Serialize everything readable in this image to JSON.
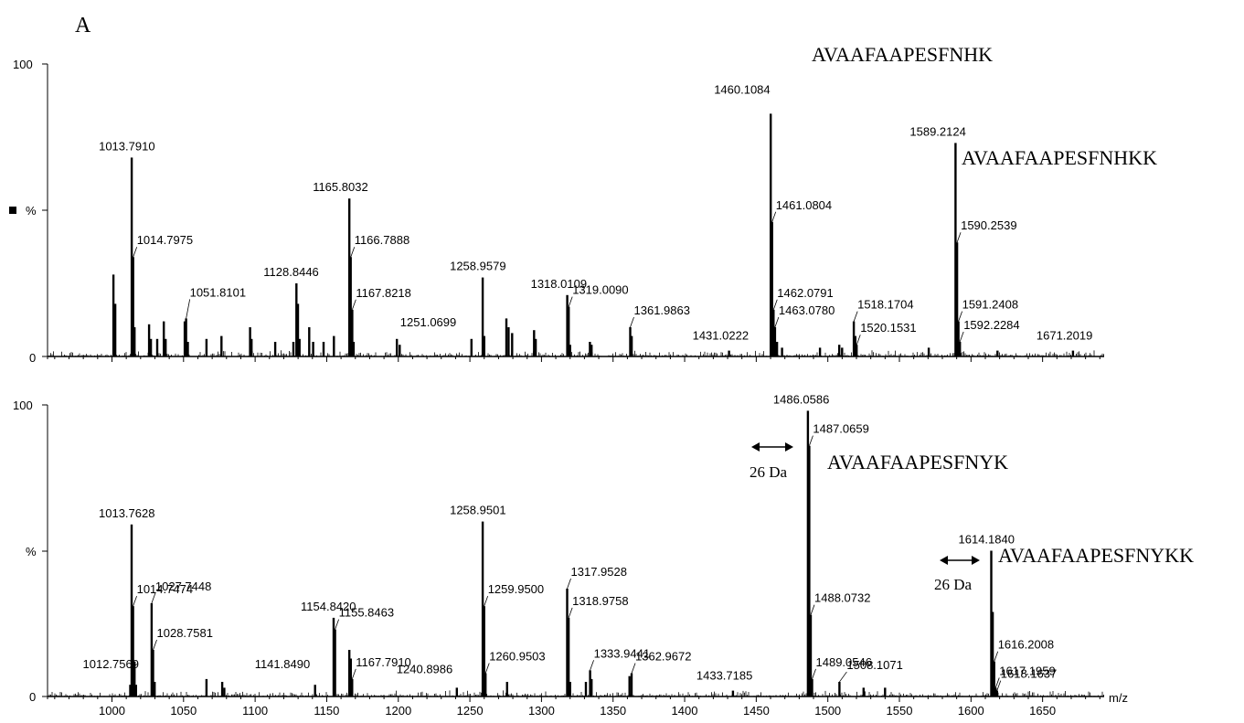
{
  "panel_label": "A",
  "x_unit": "m/z",
  "x_ticks": [
    1000,
    1050,
    1100,
    1150,
    1200,
    1250,
    1300,
    1350,
    1400,
    1450,
    1500,
    1550,
    1600,
    1650
  ],
  "chart_data": [
    {
      "type": "bar",
      "xlim": [
        955,
        1693
      ],
      "ylim": [
        0,
        100
      ],
      "y_tick_labels": [
        "100",
        "%",
        "0"
      ],
      "marker": "■",
      "peaks": [
        {
          "x": 1001.0,
          "y": 28
        },
        {
          "x": 1002.3,
          "y": 18
        },
        {
          "x": 1013.79,
          "y": 68,
          "label": "1013.7910"
        },
        {
          "x": 1014.8,
          "y": 34,
          "label": "1014.7975"
        },
        {
          "x": 1015.8,
          "y": 10
        },
        {
          "x": 1025.9,
          "y": 11
        },
        {
          "x": 1027.2,
          "y": 6
        },
        {
          "x": 1031.6,
          "y": 6
        },
        {
          "x": 1036.2,
          "y": 12
        },
        {
          "x": 1037.5,
          "y": 6
        },
        {
          "x": 1050.8,
          "y": 12
        },
        {
          "x": 1051.81,
          "y": 13,
          "label": "1051.8101"
        },
        {
          "x": 1053.0,
          "y": 5
        },
        {
          "x": 1066.0,
          "y": 6
        },
        {
          "x": 1076.5,
          "y": 7
        },
        {
          "x": 1096.5,
          "y": 10
        },
        {
          "x": 1097.5,
          "y": 6
        },
        {
          "x": 1114.0,
          "y": 5
        },
        {
          "x": 1126.7,
          "y": 5
        },
        {
          "x": 1128.84,
          "y": 25,
          "label": "1128.8446"
        },
        {
          "x": 1129.9,
          "y": 18
        },
        {
          "x": 1131.0,
          "y": 6
        },
        {
          "x": 1137.8,
          "y": 10
        },
        {
          "x": 1140.5,
          "y": 5
        },
        {
          "x": 1147.8,
          "y": 5
        },
        {
          "x": 1155.0,
          "y": 7
        },
        {
          "x": 1165.8,
          "y": 54,
          "label": "1165.8032"
        },
        {
          "x": 1166.79,
          "y": 34,
          "label": "1166.7888"
        },
        {
          "x": 1167.82,
          "y": 16,
          "label": "1167.8218"
        },
        {
          "x": 1168.8,
          "y": 5
        },
        {
          "x": 1199.0,
          "y": 6
        },
        {
          "x": 1201.0,
          "y": 4
        },
        {
          "x": 1251.07,
          "y": 6,
          "label": "1251.0699"
        },
        {
          "x": 1258.96,
          "y": 27,
          "label": "1258.9579"
        },
        {
          "x": 1260.0,
          "y": 7
        },
        {
          "x": 1275.5,
          "y": 13
        },
        {
          "x": 1277.0,
          "y": 10
        },
        {
          "x": 1279.5,
          "y": 8
        },
        {
          "x": 1294.8,
          "y": 9
        },
        {
          "x": 1296.0,
          "y": 6
        },
        {
          "x": 1318.01,
          "y": 21,
          "label": "1318.0109"
        },
        {
          "x": 1319.01,
          "y": 17,
          "label": "1319.0090"
        },
        {
          "x": 1320.0,
          "y": 4
        },
        {
          "x": 1333.8,
          "y": 5
        },
        {
          "x": 1335.0,
          "y": 4
        },
        {
          "x": 1361.99,
          "y": 10,
          "label": "1361.9863"
        },
        {
          "x": 1363.0,
          "y": 7
        },
        {
          "x": 1431.02,
          "y": 2,
          "label": "1431.0222"
        },
        {
          "x": 1460.11,
          "y": 83,
          "label": "1460.1084"
        },
        {
          "x": 1461.08,
          "y": 46,
          "label": "1461.0804"
        },
        {
          "x": 1462.08,
          "y": 16,
          "label": "1462.0791"
        },
        {
          "x": 1463.08,
          "y": 10,
          "label": "1463.0780"
        },
        {
          "x": 1464.5,
          "y": 5
        },
        {
          "x": 1468.0,
          "y": 3
        },
        {
          "x": 1494.5,
          "y": 3
        },
        {
          "x": 1508.0,
          "y": 4
        },
        {
          "x": 1510.0,
          "y": 3
        },
        {
          "x": 1518.17,
          "y": 12,
          "label": "1518.1704"
        },
        {
          "x": 1519.2,
          "y": 7
        },
        {
          "x": 1520.15,
          "y": 4,
          "label": "1520.1531"
        },
        {
          "x": 1570.5,
          "y": 3
        },
        {
          "x": 1589.21,
          "y": 73,
          "label": "1589.2124"
        },
        {
          "x": 1590.25,
          "y": 39,
          "label": "1590.2539"
        },
        {
          "x": 1591.24,
          "y": 12,
          "label": "1591.2408"
        },
        {
          "x": 1592.23,
          "y": 5,
          "label": "1592.2284"
        },
        {
          "x": 1618.5,
          "y": 2
        },
        {
          "x": 1671.2,
          "y": 2,
          "label": "1671.2019"
        }
      ],
      "annotations": [
        {
          "text": "AVAAFAAPESFNHK"
        },
        {
          "text": "AVAAFAAPESFNHKK"
        }
      ]
    },
    {
      "type": "bar",
      "xlim": [
        955,
        1693
      ],
      "ylim": [
        0,
        100
      ],
      "y_tick_labels": [
        "100",
        "%",
        "0"
      ],
      "peaks": [
        {
          "x": 1012.76,
          "y": 4,
          "label": "1012.7569"
        },
        {
          "x": 1013.76,
          "y": 59,
          "label": "1013.7628"
        },
        {
          "x": 1014.75,
          "y": 31,
          "label": "1014.7474"
        },
        {
          "x": 1015.8,
          "y": 12
        },
        {
          "x": 1016.8,
          "y": 4
        },
        {
          "x": 1027.74,
          "y": 32,
          "label": "1027.7448"
        },
        {
          "x": 1028.76,
          "y": 16,
          "label": "1028.7581"
        },
        {
          "x": 1029.8,
          "y": 5
        },
        {
          "x": 1066.0,
          "y": 6
        },
        {
          "x": 1077.0,
          "y": 5
        },
        {
          "x": 1078.5,
          "y": 3
        },
        {
          "x": 1141.85,
          "y": 4,
          "label": "1141.8490"
        },
        {
          "x": 1154.84,
          "y": 27,
          "label": "1154.8420"
        },
        {
          "x": 1155.85,
          "y": 23,
          "label": "1155.8463"
        },
        {
          "x": 1165.8,
          "y": 16
        },
        {
          "x": 1166.8,
          "y": 13
        },
        {
          "x": 1167.79,
          "y": 6,
          "label": "1167.7910"
        },
        {
          "x": 1240.9,
          "y": 3,
          "label": "1240.8986"
        },
        {
          "x": 1258.95,
          "y": 60,
          "label": "1258.9501"
        },
        {
          "x": 1259.95,
          "y": 31,
          "label": "1259.9500"
        },
        {
          "x": 1260.95,
          "y": 8,
          "label": "1260.9503"
        },
        {
          "x": 1276.0,
          "y": 5
        },
        {
          "x": 1317.95,
          "y": 37,
          "label": "1317.9528"
        },
        {
          "x": 1318.98,
          "y": 27,
          "label": "1318.9758"
        },
        {
          "x": 1320.0,
          "y": 5
        },
        {
          "x": 1331.0,
          "y": 5
        },
        {
          "x": 1333.94,
          "y": 9,
          "label": "1333.9441"
        },
        {
          "x": 1335.0,
          "y": 6
        },
        {
          "x": 1361.5,
          "y": 7
        },
        {
          "x": 1362.97,
          "y": 8,
          "label": "1362.9672"
        },
        {
          "x": 1433.72,
          "y": 2,
          "label": "1433.7185"
        },
        {
          "x": 1486.06,
          "y": 98,
          "label": "1486.0586"
        },
        {
          "x": 1487.07,
          "y": 86,
          "label": "1487.0659"
        },
        {
          "x": 1488.07,
          "y": 28,
          "label": "1488.0732"
        },
        {
          "x": 1489.05,
          "y": 6,
          "label": "1489.0546"
        },
        {
          "x": 1508.11,
          "y": 5,
          "label": "1508.1071"
        },
        {
          "x": 1525.0,
          "y": 3
        },
        {
          "x": 1540.0,
          "y": 3
        },
        {
          "x": 1614.18,
          "y": 50,
          "label": "1614.1840"
        },
        {
          "x": 1615.2,
          "y": 29
        },
        {
          "x": 1616.2,
          "y": 12,
          "label": "1616.2008"
        },
        {
          "x": 1617.2,
          "y": 3,
          "label": "1617.1959"
        },
        {
          "x": 1618.16,
          "y": 2,
          "label": "1618.1637"
        }
      ],
      "annotations": [
        {
          "text": "AVAAFAAPESFNYK"
        },
        {
          "text": "AVAAFAAPESFNYKK"
        },
        {
          "text": "26 Da"
        },
        {
          "text": "26 Da"
        }
      ]
    }
  ]
}
